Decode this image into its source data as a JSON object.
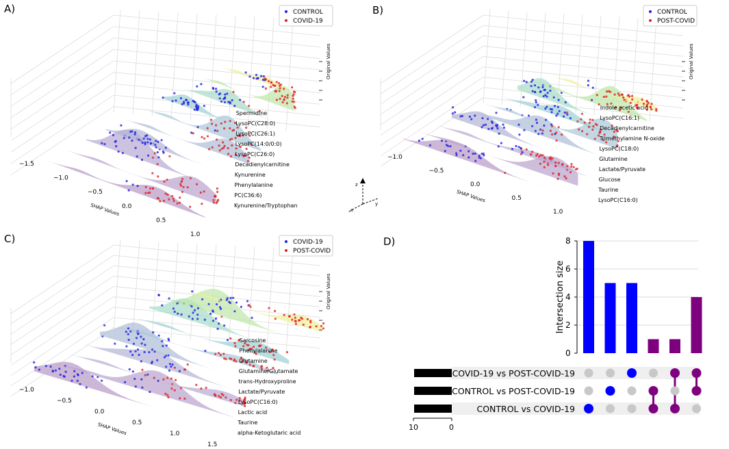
{
  "panels": [
    {
      "label": "A)",
      "legend": [
        "CONTROL",
        "COVID-19"
      ],
      "x_ticks": [
        "−1.5",
        "−1.0",
        "−0.5",
        "0.0",
        "0.5",
        "1.0"
      ],
      "xlabel": "SHAP Values",
      "zlabel": "Original Values",
      "features": [
        "Spermidine",
        "LysoPC(C28:0)",
        "LysoPC(C26:1)",
        "LysoPC(14:0/0:0)",
        "LysoPC(C26:0)",
        "Decadienylcarnitine",
        "Kynurenine",
        "Phenylalanine",
        "PC(C36:6)",
        "Kynurenine/Tryptophan"
      ]
    },
    {
      "label": "B)",
      "legend": [
        "CONTROL",
        "POST-COVID"
      ],
      "x_ticks": [
        "−1.0",
        "−0.5",
        "0.0",
        "0.5",
        "1.0"
      ],
      "xlabel": "SHAP Values",
      "zlabel": "Original Values",
      "features": [
        "Indole acetic acid",
        "LysoPC(C16:1)",
        "Decadienylcarnitine",
        "Trimethylamine N-oxide",
        "LysoPC(C18:0)",
        "Glutamine",
        "Lactate/Pyruvate",
        "Glucose",
        "Taurine",
        "LysoPC(C16:0)"
      ]
    },
    {
      "label": "C)",
      "legend": [
        "COVID-19",
        "POST-COVID"
      ],
      "x_ticks": [
        "−1.0",
        "−0.5",
        "0.0",
        "0.5",
        "1.0",
        "1.5"
      ],
      "xlabel": "SHAP Values",
      "zlabel": "Original Values",
      "features": [
        "Sarcosine",
        "Phenylalanine",
        "Glutamine",
        "Glutamine/Glutamate",
        "trans-Hydroxyproline",
        "Lactate/Pyruvate",
        "LysoPC(C16:0)",
        "Lactic acid",
        "Taurine",
        "alpha-Ketoglutaric acid"
      ]
    }
  ],
  "axes_legend": {
    "z": "z",
    "y": "y",
    "x": "x"
  },
  "colors": {
    "blue": "#1f1fe0",
    "red": "#e02020",
    "purple": "#7f007f",
    "upset_blue": "#0000ff",
    "gray_dot": "#c8c8c8"
  },
  "chart_data": {
    "type": "bar",
    "label": "D)",
    "ylabel": "Intersection size",
    "ylim": [
      0,
      8
    ],
    "y_ticks": [
      "0",
      "2",
      "4",
      "6",
      "8"
    ],
    "values": [
      8,
      5,
      5,
      1,
      1,
      4
    ],
    "bar_colors": [
      "#0000ff",
      "#0000ff",
      "#0000ff",
      "#7f007f",
      "#7f007f",
      "#7f007f"
    ],
    "sets": [
      "COVID-19 vs POST-COVID-19",
      "CONTROL vs POST-COVID-19",
      "CONTROL vs COVID-19"
    ],
    "set_size_ticks": [
      "10",
      "0"
    ],
    "membership": [
      [
        2
      ],
      [
        1
      ],
      [
        0
      ],
      [
        1,
        2
      ],
      [
        0,
        2
      ],
      [
        0,
        1
      ]
    ]
  }
}
